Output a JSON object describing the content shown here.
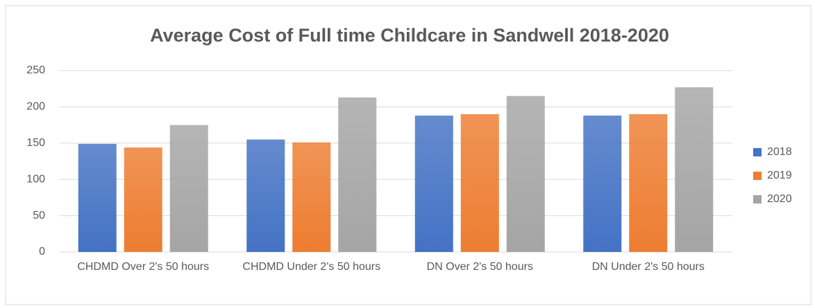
{
  "chart_data": {
    "type": "bar",
    "title": "Average Cost of Full time Childcare in Sandwell 2018-2020",
    "categories": [
      "CHDMD Over 2's 50 hours",
      "CHDMD Under 2's 50 hours",
      "DN Over 2's 50 hours",
      "DN Under 2's 50 hours"
    ],
    "series": [
      {
        "name": "2018",
        "color": "#4472c4",
        "values": [
          149,
          155,
          188,
          188
        ]
      },
      {
        "name": "2019",
        "color": "#ed7d31",
        "values": [
          144,
          151,
          190,
          190
        ]
      },
      {
        "name": "2020",
        "color": "#a5a5a5",
        "values": [
          175,
          213,
          215,
          227
        ]
      }
    ],
    "ylim": [
      0,
      250
    ],
    "yticks": [
      0,
      50,
      100,
      150,
      200,
      250
    ],
    "grid": true,
    "legend": "right"
  }
}
